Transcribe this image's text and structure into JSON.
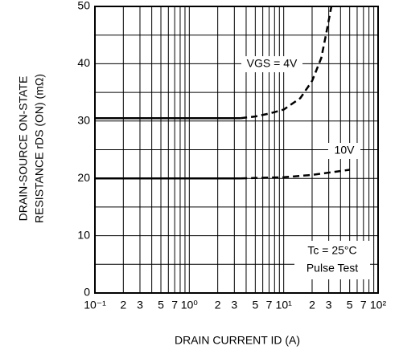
{
  "chart_data": {
    "type": "line",
    "ylabel": [
      "DRAIN-SOURCE ON-STATE",
      "RESISTANCE   rDS (ON) (mΩ)"
    ],
    "xlabel": "DRAIN CURRENT   ID (A)",
    "xlog": true,
    "grid": true,
    "xlim": [
      0.1,
      100
    ],
    "ylim": [
      0,
      50
    ],
    "xticks": [
      {
        "value": 0.1,
        "label": "10⁻¹"
      },
      {
        "value": 0.2,
        "label": "2"
      },
      {
        "value": 0.3,
        "label": "3"
      },
      {
        "value": 0.5,
        "label": "5"
      },
      {
        "value": 0.7,
        "label": "7"
      },
      {
        "value": 1,
        "label": "10⁰"
      },
      2,
      3,
      5,
      7,
      {
        "value": 10,
        "label": "10¹"
      },
      {
        "value": 20,
        "label": "2"
      },
      {
        "value": 30,
        "label": "3"
      },
      {
        "value": 50,
        "label": "5"
      },
      {
        "value": 70,
        "label": "7"
      },
      {
        "value": 100,
        "label": "10²"
      }
    ],
    "xminor": [
      0.4,
      0.6,
      0.8,
      0.9,
      4,
      6,
      8,
      9,
      40,
      60,
      80,
      90
    ],
    "yticks": [
      0,
      10,
      20,
      30,
      40,
      50
    ],
    "yminor": [
      5,
      15,
      25,
      35,
      45
    ],
    "color": "#000000",
    "series": [
      {
        "style": "solid",
        "x": [
          0.1,
          3.5
        ],
        "values": [
          30.5,
          30.5
        ]
      },
      {
        "style": "dashed",
        "x": [
          3.5,
          5,
          7,
          10,
          15,
          20,
          25,
          28,
          32
        ],
        "values": [
          30.5,
          30.8,
          31.3,
          32,
          34,
          37,
          41,
          45,
          50
        ]
      },
      {
        "style": "solid",
        "x": [
          0.1,
          3.5
        ],
        "values": [
          20,
          20
        ]
      },
      {
        "style": "dashed",
        "x": [
          3.5,
          10,
          20,
          30,
          50
        ],
        "values": [
          20,
          20.2,
          20.6,
          21,
          21.5
        ]
      }
    ],
    "annotations": [
      "VGS = 4V",
      "10V",
      "Tc = 25°C",
      "Pulse Test"
    ]
  }
}
